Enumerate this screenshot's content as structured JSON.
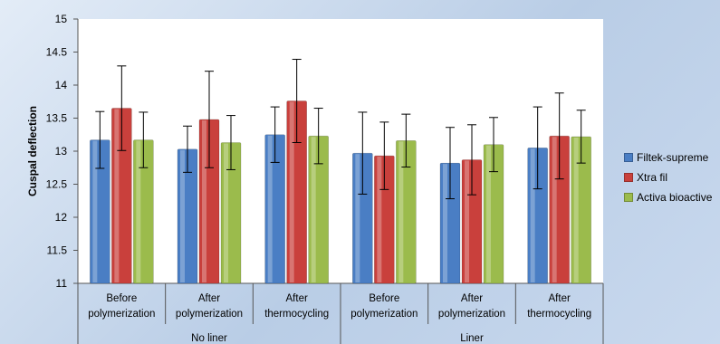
{
  "chart_data": {
    "type": "bar",
    "ylabel": "Cuspal deflection",
    "xlabel": "",
    "ylim": [
      11,
      15
    ],
    "yticks": [
      "11",
      "11.5",
      "12",
      "12.5",
      "13",
      "13.5",
      "14",
      "14.5",
      "15"
    ],
    "categories": [
      {
        "line1": "Before",
        "line2": "polymerization"
      },
      {
        "line1": "After",
        "line2": "polymerization"
      },
      {
        "line1": "After",
        "line2": "thermocycling"
      },
      {
        "line1": "Before",
        "line2": "polymerization"
      },
      {
        "line1": "After",
        "line2": "polymerization"
      },
      {
        "line1": "After",
        "line2": "thermocycling"
      }
    ],
    "groups": [
      {
        "label": "No liner",
        "categories": [
          0,
          1,
          2
        ]
      },
      {
        "label": "Liner",
        "categories": [
          3,
          4,
          5
        ]
      }
    ],
    "series": [
      {
        "name": "Filtek-supreme",
        "color": "#4a7ec4",
        "values": [
          13.17,
          13.03,
          13.25,
          12.97,
          12.82,
          13.05
        ],
        "errors": [
          0.43,
          0.35,
          0.42,
          0.62,
          0.54,
          0.62
        ]
      },
      {
        "name": "Xtra fil",
        "color": "#c9403c",
        "values": [
          13.65,
          13.48,
          13.76,
          12.93,
          12.87,
          13.23
        ],
        "errors": [
          0.64,
          0.73,
          0.63,
          0.51,
          0.53,
          0.65
        ]
      },
      {
        "name": "Activa bioactive",
        "color": "#9bbb4c",
        "values": [
          13.17,
          13.13,
          13.23,
          13.16,
          13.1,
          13.22
        ],
        "errors": [
          0.42,
          0.41,
          0.42,
          0.4,
          0.41,
          0.4
        ]
      }
    ],
    "legend_position": "right",
    "grid": false
  }
}
